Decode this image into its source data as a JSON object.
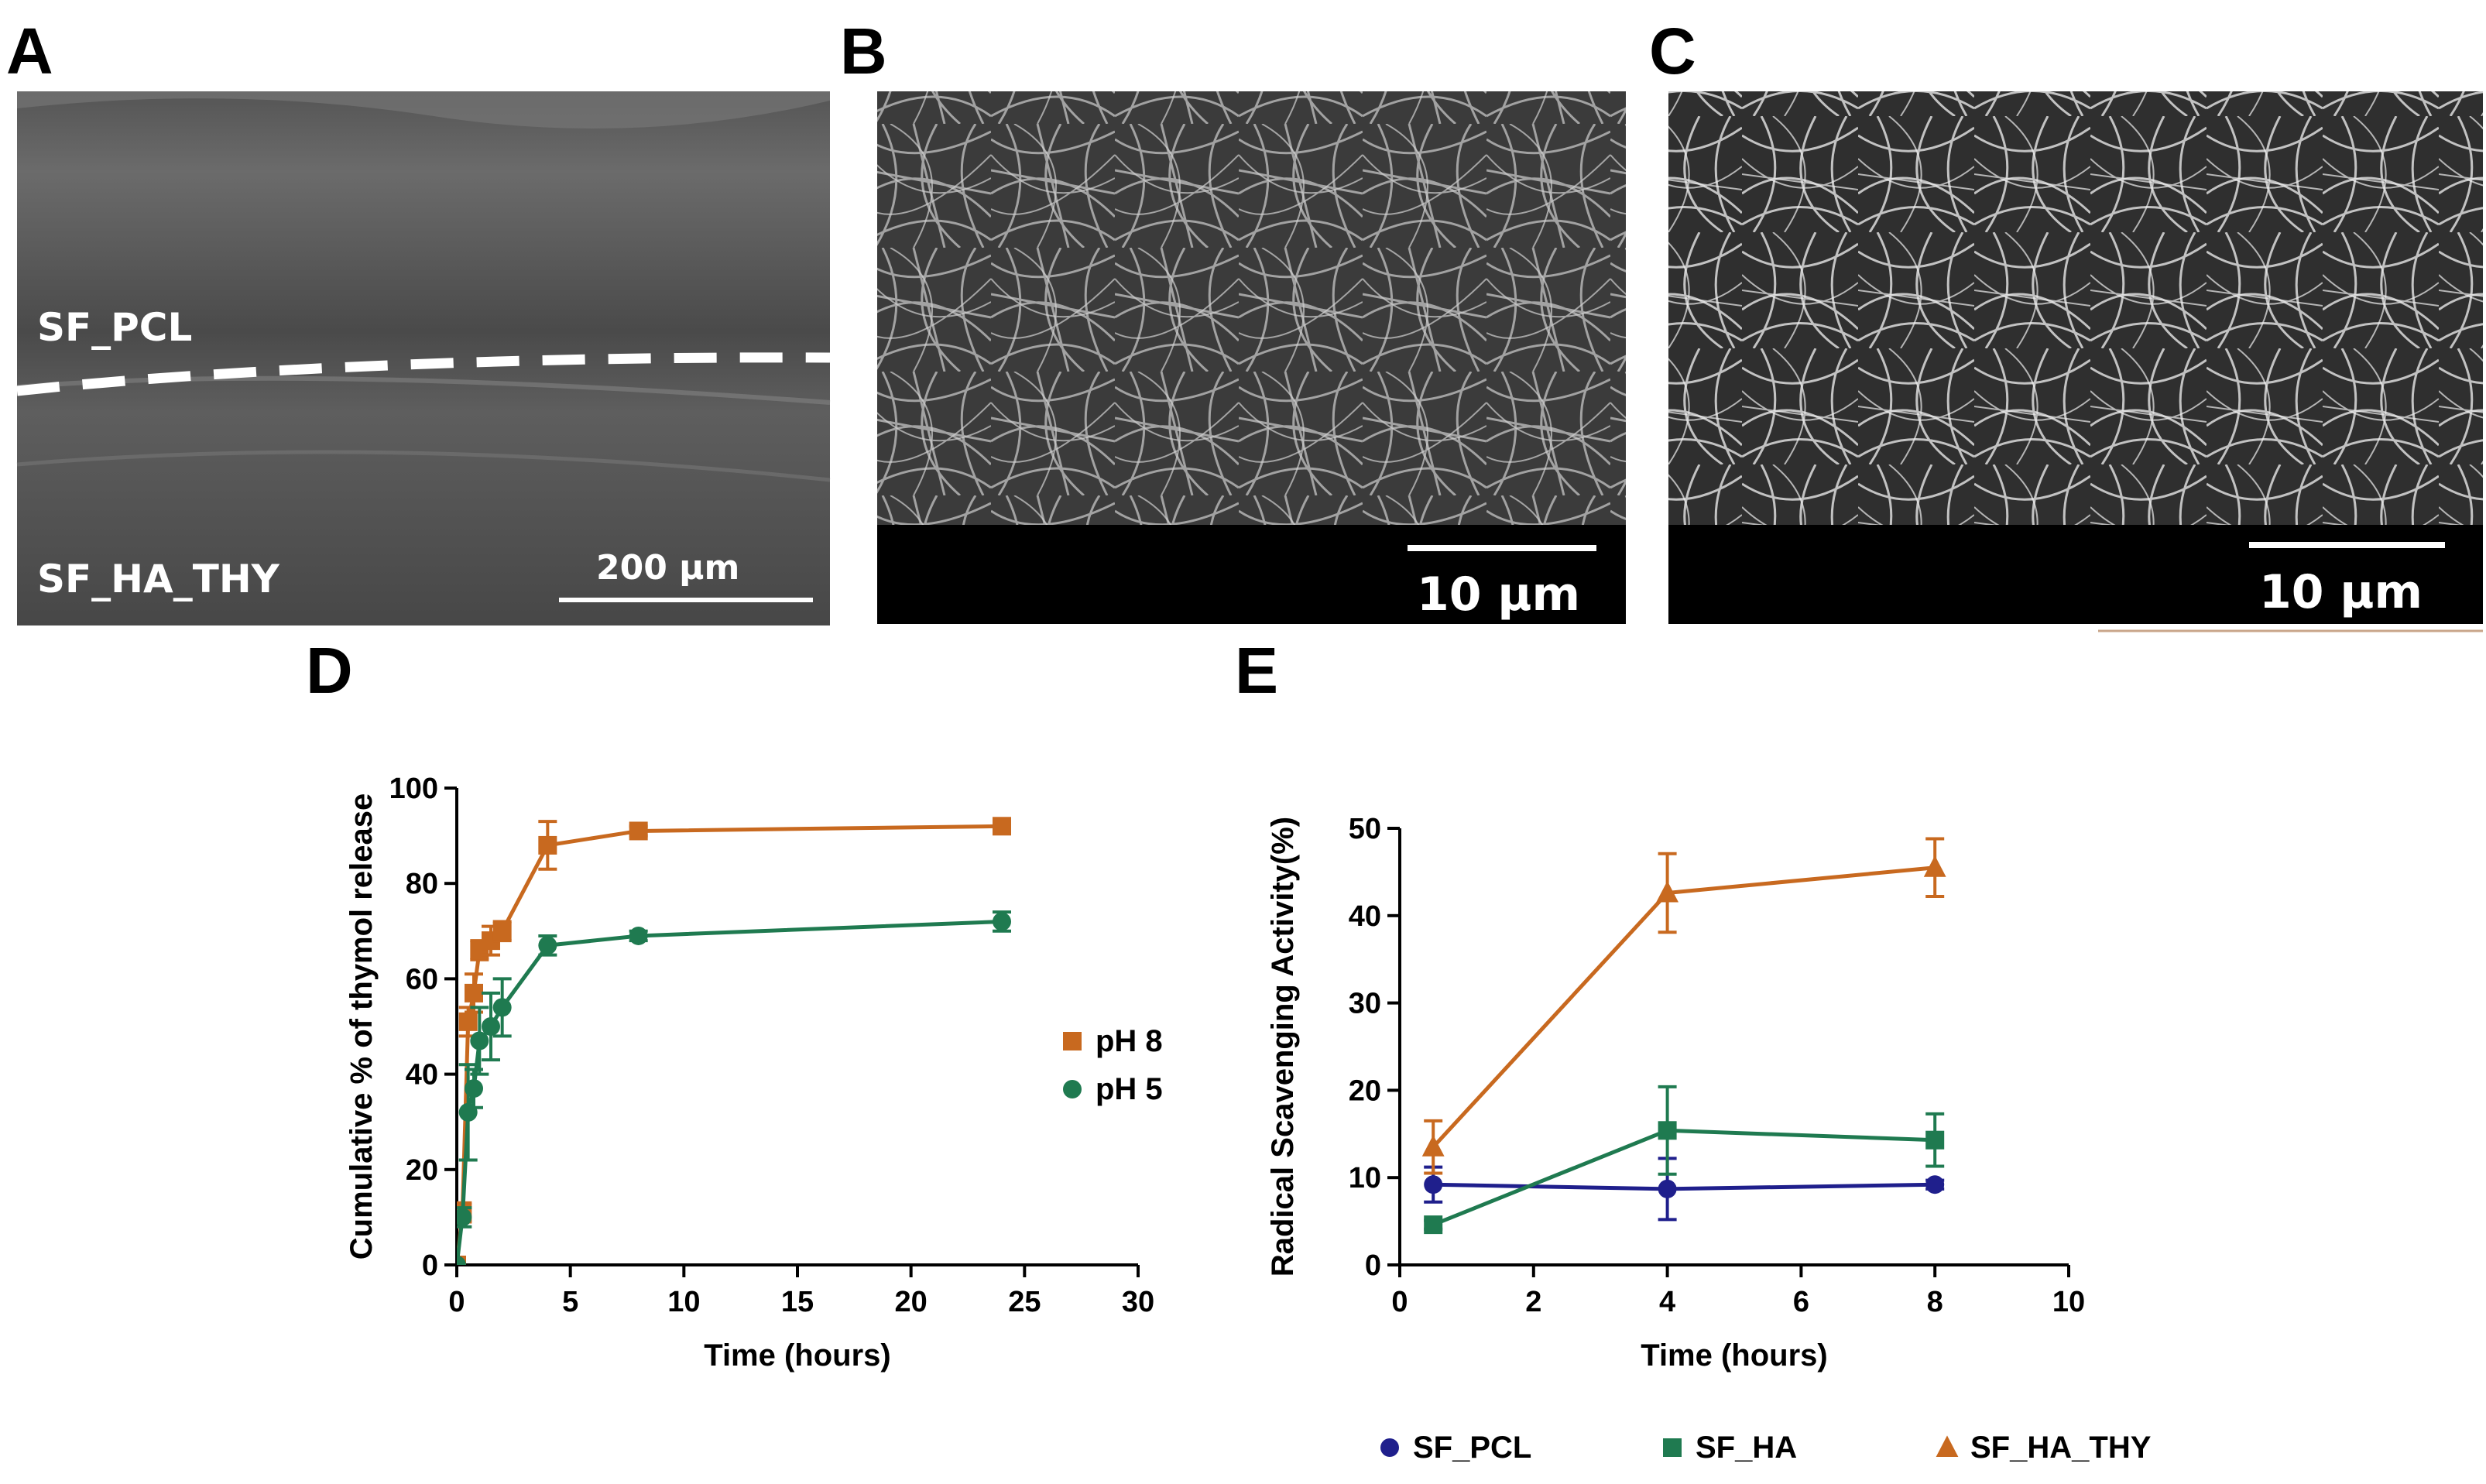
{
  "panels": {
    "a": {
      "label": "A",
      "layer_top": "SF_PCL",
      "layer_bottom": "SF_HA_THY",
      "scale_bar": "200 µm"
    },
    "b": {
      "label": "B",
      "scale_bar": "10 µm"
    },
    "c": {
      "label": "C",
      "scale_bar": "10 µm"
    },
    "d": {
      "label": "D"
    },
    "e": {
      "label": "E"
    }
  },
  "colors": {
    "orange": "#c8691f",
    "green": "#1f7a50",
    "navy": "#1f1f8c"
  },
  "chart_data": [
    {
      "type": "line",
      "panel": "D",
      "xlabel": "Time (hours)",
      "ylabel": "Cumulative % of thymol release",
      "xlim": [
        0,
        30
      ],
      "ylim": [
        0,
        100
      ],
      "xticks": [
        "0",
        "5",
        "10",
        "15",
        "20",
        "25",
        "30"
      ],
      "yticks": [
        "0",
        "20",
        "40",
        "60",
        "80",
        "100"
      ],
      "legend_position": "right",
      "series": [
        {
          "name": "pH 8",
          "marker": "square",
          "color": "#c8691f",
          "x": [
            0,
            0.25,
            0.5,
            0.75,
            1,
            1.5,
            2,
            4,
            8,
            24
          ],
          "y": [
            0,
            11,
            51,
            57,
            66,
            68,
            70,
            88,
            91,
            92
          ],
          "err": [
            0,
            2,
            3,
            4,
            2,
            3,
            2,
            5,
            1,
            1
          ]
        },
        {
          "name": "pH 5",
          "marker": "circle",
          "color": "#1f7a50",
          "x": [
            0,
            0.25,
            0.5,
            0.75,
            1,
            1.5,
            2,
            4,
            8,
            24
          ],
          "y": [
            0,
            10,
            32,
            37,
            47,
            50,
            54,
            67,
            69,
            72
          ],
          "err": [
            0,
            2,
            10,
            4,
            7,
            7,
            6,
            2,
            1,
            2
          ]
        }
      ]
    },
    {
      "type": "line",
      "panel": "E",
      "xlabel": "Time (hours)",
      "ylabel": "Radical Scavenging Activity(%)",
      "xlim": [
        0,
        10
      ],
      "ylim": [
        0,
        50
      ],
      "xticks": [
        "0",
        "2",
        "4",
        "6",
        "8",
        "10"
      ],
      "yticks": [
        "0",
        "10",
        "20",
        "30",
        "40",
        "50"
      ],
      "legend_position": "bottom",
      "series": [
        {
          "name": "SF_PCL",
          "marker": "circle",
          "color": "#1f1f8c",
          "x": [
            0.5,
            4,
            8
          ],
          "y": [
            9.2,
            8.7,
            9.2
          ],
          "err": [
            2,
            3.5,
            0.5
          ]
        },
        {
          "name": "SF_HA",
          "marker": "square",
          "color": "#1f7a50",
          "x": [
            0.5,
            4,
            8
          ],
          "y": [
            4.6,
            15.4,
            14.3
          ],
          "err": [
            0.5,
            5,
            3
          ]
        },
        {
          "name": "SF_HA_THY",
          "marker": "triangle",
          "color": "#c8691f",
          "x": [
            0.5,
            4,
            8
          ],
          "y": [
            13.5,
            42.6,
            45.5
          ],
          "err": [
            3,
            4.5,
            3.3
          ]
        }
      ]
    }
  ]
}
